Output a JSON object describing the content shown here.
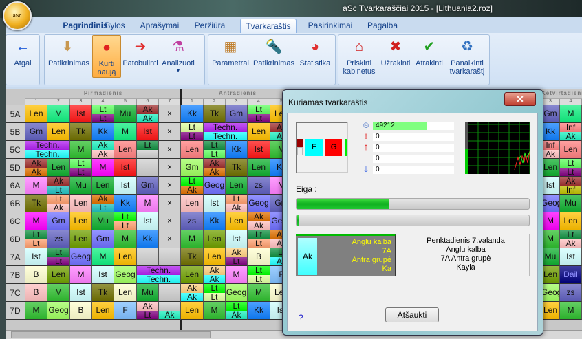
{
  "window": {
    "title": "aSc Tvarkaraščiai 2015  - [Lithuania2.roz]",
    "logo_text": "aSc"
  },
  "tabs": [
    {
      "label": "Pagrindinis",
      "bold": true
    },
    {
      "label": "Bylos"
    },
    {
      "label": "Aprašymai"
    },
    {
      "label": "Peržiūra"
    },
    {
      "label": "Tvarkaraštis",
      "selected": true
    },
    {
      "label": "Pasirinkimai"
    },
    {
      "label": "Pagalba"
    }
  ],
  "ribbon": [
    {
      "label": "Atgal",
      "icon": "back-arrow-icon",
      "glyph": "←",
      "color": "#1e5ad8"
    },
    {
      "label": "Patikrinimas",
      "icon": "check-box-icon",
      "glyph": "⬇",
      "color": "#c89850"
    },
    {
      "label": "Kurti naują",
      "icon": "siren-icon",
      "glyph": "●",
      "color": "#e02020",
      "highlighted": true
    },
    {
      "label": "Patobulinti",
      "icon": "improve-siren-icon",
      "glyph": "➜",
      "color": "#e03030"
    },
    {
      "label": "Analizuoti",
      "icon": "flask-icon",
      "glyph": "⚗",
      "color": "#c040a0",
      "dropdown": true
    },
    {
      "label": "Parametrai",
      "icon": "abacus-icon",
      "glyph": "▦",
      "color": "#c08030"
    },
    {
      "label": "Patikrinimas",
      "icon": "flashlight-icon",
      "glyph": "🔦",
      "color": "#2060c0"
    },
    {
      "label": "Statistika",
      "icon": "pie-chart-icon",
      "glyph": "◕",
      "color": "#e03030"
    },
    {
      "label": "Priskirti kabinetus",
      "icon": "house-icon",
      "glyph": "⌂",
      "color": "#d02020"
    },
    {
      "label": "Užrakinti",
      "icon": "lock-sheet-icon",
      "glyph": "✖",
      "color": "#d02020"
    },
    {
      "label": "Atrakinti",
      "icon": "unlock-sheet-icon",
      "glyph": "✔",
      "color": "#20a020"
    },
    {
      "label": "Panaikinti tvarkaraštį",
      "icon": "recycle-bin-icon",
      "glyph": "♻",
      "color": "#3070c0"
    }
  ],
  "palette": {
    "or": "#ffc000",
    "mg": "#10f080",
    "rd": "#ff1515",
    "lg": "#60ff60",
    "pu": "#800080",
    "gr": "#10b030",
    "br": "#a03030",
    "aq": "#20f0c0",
    "bl": "#1080ff",
    "ol": "#707000",
    "sl": "#6060c0",
    "vi": "#b020f0",
    "cy": "#20ffff",
    "dg": "#109040",
    "pk": "#ffc0c0",
    "sa": "#ff8080",
    "gy": "#cfcfcf",
    "ly": "#e0ffa0",
    "mag": "#ff00ff",
    "dor": "#e07000",
    "pm": "#ff80ff",
    "te": "#20c0c0",
    "ic": "#d0ffff",
    "og": "#70a000",
    "pe": "#ffa070",
    "lb": "#7070ff",
    "cr": "#ffffd0",
    "lime": "#a0ff60",
    "sky": "#80c0ff",
    "lo": "#ffd080",
    "nv": "#000080",
    "yo": "#c0c000",
    "gn2": "#30c030",
    "bg": "#00ff00"
  },
  "timetable": {
    "days": [
      "Pirmadienis",
      "Antradienis",
      "Ketvirtadienis"
    ],
    "day1_periods": [
      "1",
      "2",
      "3",
      "4",
      "5",
      "6",
      "7"
    ],
    "day2_periods": [
      "1",
      "2",
      "3",
      "4",
      "5"
    ],
    "day4_periods": [
      "3",
      "4"
    ],
    "rows": [
      {
        "class": "5A",
        "d1": [
          "Len/or",
          "M/mg",
          "Ist/rd",
          "Lt/lg+Lt/pu",
          "Mu/gr",
          "Ak/br+Ak/aq",
          "×"
        ],
        "d2": [
          "Kk/bl",
          "Tk/ol",
          "Gm/sl",
          "Lt/lg+Lt/pu",
          "Len/or"
        ],
        "d4": [
          "Gm/sl",
          "M/mg"
        ]
      },
      {
        "class": "5B",
        "d1": [
          "Gm/sl",
          "Len/or",
          "Tk/ol",
          "Kk/bl",
          "M/mg",
          "Ist/rd",
          "×"
        ],
        "d2": [
          "Lt/ly+Lt/pu",
          "Techn./vi+Techn./cy*2",
          "Len/or",
          "Ak/br+Ak/aq"
        ],
        "d4": [
          "Kk/bl",
          "Inf/sa+Ak/aq"
        ]
      },
      {
        "class": "5C",
        "d1": [
          "Techn./vi+Techn./cy*2",
          "M/gn2",
          "Ak/aq+Ak/pk",
          "Len/sa",
          "Lt/dg+/gy",
          "×"
        ],
        "d2": [
          "Len/sa",
          "Lt/dg+Lt/lg",
          "Kk/bl",
          "Ist/rd",
          "M/gn2"
        ],
        "d4": [
          "Inf/sa+Ak/pk",
          "Len/sa"
        ]
      },
      {
        "class": "5D",
        "d1": [
          "Ak/br+Ak/dor",
          "Len/gr",
          "Lt/lg+Lt/pu",
          "M/mag",
          "Ist/rd",
          "/gy",
          "×"
        ],
        "d2": [
          "Gm/lime",
          "Ak/br+Ak/dor",
          "Tk/ol",
          "Len/gr",
          "Kk/bl"
        ],
        "d4": [
          "Len/gr",
          "Lt/lg+Lt/pu"
        ]
      },
      {
        "class": "6A",
        "d1": [
          "M/pm",
          "Ak/br+Lt/te",
          "Mu/gr",
          "Len/gr",
          "Ist/ic",
          "Gm/sl",
          "×"
        ],
        "d2": [
          "Lt/bg+Ak/dor",
          "Geog/lb",
          "Len/gr",
          "zs/sl",
          "M/pm"
        ],
        "d4": [
          "Ist/ic",
          "Ak/br+Inf/yo"
        ]
      },
      {
        "class": "6B",
        "d1": [
          "Tk/ol",
          "Lt/pe+Ak/pk",
          "Len/pk",
          "Ak/dor+Lt/te",
          "Kk/bl",
          "M/pm",
          "×"
        ],
        "d2": [
          "Len/pk",
          "Ist/ic",
          "Lt/pe+Ak/pk",
          "Geog/lb",
          "Gm/sl"
        ],
        "d4": [
          "Geog/lb",
          "Mu/gr"
        ]
      },
      {
        "class": "6C",
        "d1": [
          "M/mag",
          "Gm/lb",
          "Len/or",
          "Mu/gr",
          "Lt/bg+Lt/pe",
          "Ist/ic",
          "×"
        ],
        "d2": [
          "zs/sl",
          "Kk/bl",
          "Len/or",
          "Ak/dor+Ak/pk",
          "Geog/lb"
        ],
        "d4": [
          "M/mag",
          "Len/or"
        ]
      },
      {
        "class": "6D",
        "d1": [
          "Lt/dg+Lt/pe",
          "zs/sl",
          "Len/og",
          "Gm/lb",
          "M/gn2",
          "Kk/bl",
          "×"
        ],
        "d2": [
          "M/gn2",
          "Len/og",
          "Ist/ic",
          "Lt/dg+Lt/pe",
          "Ak/dor+Ak/pk"
        ],
        "d4": [
          "M/gn2",
          "Lt/dg+Ak/pk"
        ]
      },
      {
        "class": "7A",
        "d1": [
          "Ist/ic",
          "Lt/dg+Lt/pu",
          "Geog/lb",
          "M/mg",
          "Len/or",
          "/gy",
          "/gy"
        ],
        "d2": [
          "Tk/ol",
          "Len/or",
          "Ak/lo+Lt/pu",
          "B/cr",
          "Lt/dg+Ak/cy"
        ],
        "d4": [
          "Mu/gr",
          "Ist/ic"
        ]
      },
      {
        "class": "7B",
        "d1": [
          "B/cr",
          "Len/og",
          "M/pm",
          "Ist/ic",
          "Geog/lime",
          "Techn./vi+Techn./cy*2"
        ],
        "d2": [
          "Len/og",
          "Ak/lo+Ak/cy",
          "M/pm",
          "Lt/bg+Lt/ly",
          "F/sky"
        ],
        "d4": [
          "Len/og",
          "Dail/nv"
        ]
      },
      {
        "class": "7C",
        "d1": [
          "B/pk",
          "M/gn2",
          "Ist/ic",
          "Tk/ol",
          "Len/cr",
          "Mu/gr",
          "/gy"
        ],
        "d2": [
          "Ak/lo+Ak/cy",
          "Lt/bg+Lt/ly",
          "Geog/lime",
          "M/gn2",
          "Len/cr"
        ],
        "d4": [
          "Geog/lime",
          "zs/sl"
        ]
      },
      {
        "class": "7D",
        "d1": [
          "M/gn2",
          "Geog/lime",
          "B/cr",
          "Len/or",
          "F/sky",
          "Ak/pk+Lt/pu",
          "/gy+Ak/aq"
        ],
        "d2": [
          "Len/or",
          "M/gn2",
          "Lt/bg+Ak/aq",
          "Kk/bl",
          "Ist/ic"
        ],
        "d4": [
          "Len/or",
          "M/gn2"
        ]
      }
    ]
  },
  "dialog": {
    "title": "Kuriamas tvarkaraštis",
    "close": "✕",
    "preview": {
      "f": "F",
      "g": "G"
    },
    "stats": [
      {
        "icon": "clock-icon",
        "glyph": "⏲",
        "value": "49212",
        "fill": 0.67
      },
      {
        "icon": "exclamation-icon",
        "glyph": "!",
        "value": "0"
      },
      {
        "icon": "up-arrow-icon",
        "glyph": "🡑",
        "value": "0"
      },
      {
        "icon": "",
        "glyph": "",
        "value": "0"
      },
      {
        "icon": "down-arrow-icon",
        "glyph": "🡓",
        "value": "0"
      }
    ],
    "progress_label": "Eiga :",
    "progress1": 0.4,
    "progress2": 0.01,
    "card": {
      "short": "Ak",
      "subject": "Anglu kalba",
      "class": "7A",
      "group": "Antra grupė",
      "teacher": "Ka"
    },
    "info": [
      "Penktadienis 7.valanda",
      "Anglu kalba",
      "7A Antra grupė",
      "Kayla"
    ],
    "cancel": "Atšaukti",
    "help": "?"
  }
}
